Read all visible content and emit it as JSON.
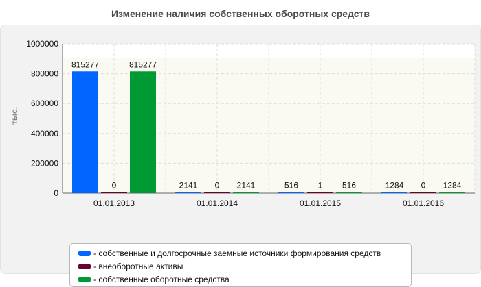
{
  "chart_data": {
    "type": "bar",
    "title": "Изменение наличия собственных оборотных средств",
    "ylabel": "тыс.",
    "xlabel": "",
    "ylim": [
      0,
      1000000
    ],
    "yticks": [
      "0",
      "200000",
      "400000",
      "600000",
      "800000",
      "1000000"
    ],
    "categories": [
      "01.01.2013",
      "01.01.2014",
      "01.01.2015",
      "01.01.2016"
    ],
    "grid": true,
    "legend_position": "bottom",
    "series": [
      {
        "name": "- собственные и долгосрочные заемные источники формирования средств",
        "color": "#0066ff",
        "values": [
          815277,
          2141,
          516,
          1284
        ]
      },
      {
        "name": "- внеоборотные активы",
        "color": "#6b0033",
        "values": [
          0,
          0,
          1,
          0
        ]
      },
      {
        "name": "- собственные оборотные средства",
        "color": "#009933",
        "values": [
          815277,
          2141,
          516,
          1284
        ]
      }
    ]
  }
}
